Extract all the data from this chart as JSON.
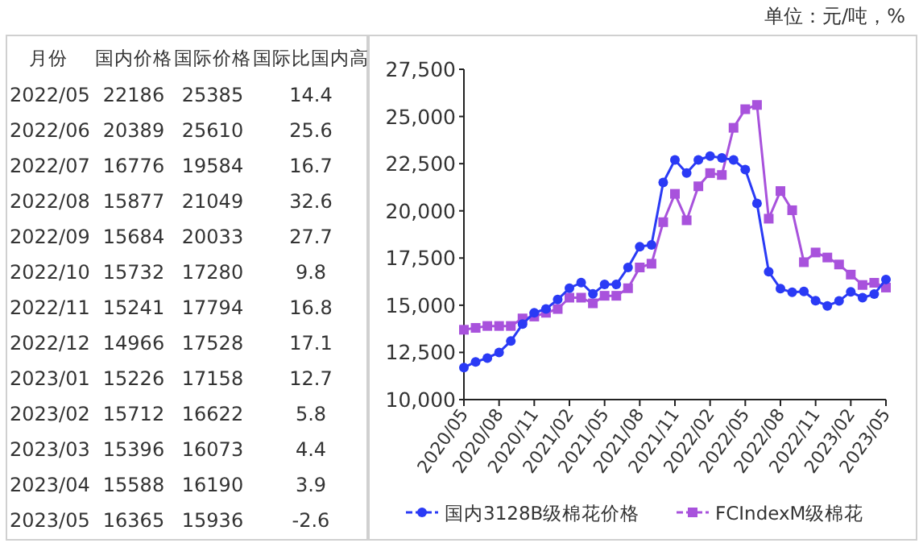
{
  "chart_data": [
    {
      "type": "other",
      "data_labels": true,
      "xlabel": "月份",
      "annotations": [
        "单位：元/吨，%"
      ],
      "categories": [
        "2022/05",
        "2022/06",
        "2022/07",
        "2022/08",
        "2022/09",
        "2022/10",
        "2022/11",
        "2022/12",
        "2023/01",
        "2023/02",
        "2023/03",
        "2023/04",
        "2023/05"
      ],
      "series": [
        {
          "name": "国内价格",
          "values": [
            22186,
            20389,
            16776,
            15877,
            15684,
            15732,
            15241,
            14966,
            15226,
            15712,
            15396,
            15588,
            16365
          ]
        },
        {
          "name": "国际价格",
          "values": [
            25385,
            25610,
            19584,
            21049,
            20033,
            17280,
            17794,
            17528,
            17158,
            16622,
            16073,
            16190,
            15936
          ]
        },
        {
          "name": "国际比国内高",
          "values": [
            14.4,
            25.6,
            16.7,
            32.6,
            27.7,
            9.8,
            16.8,
            17.1,
            12.7,
            5.8,
            4.4,
            3.9,
            -2.6
          ]
        }
      ]
    },
    {
      "type": "line",
      "legend": "bottom",
      "grid": false,
      "categories": [
        "2020/05",
        null,
        null,
        "2020/08",
        null,
        null,
        "2020/11",
        null,
        null,
        "2021/02",
        null,
        null,
        "2021/05",
        null,
        null,
        "2021/08",
        null,
        null,
        "2021/11",
        null,
        null,
        "2022/02",
        null,
        null,
        "2022/05",
        null,
        null,
        "2022/08",
        null,
        null,
        "2022/11",
        null,
        null,
        "2023/02",
        null,
        null,
        "2023/05"
      ],
      "ylim": [
        10000,
        27500
      ],
      "yticks": [
        {
          "value": 10000,
          "label": "10,000"
        },
        {
          "value": 12500,
          "label": "12,500"
        },
        {
          "value": 15000,
          "label": "15,000"
        },
        {
          "value": 17500,
          "label": "17,500"
        },
        {
          "value": 20000,
          "label": "20,000"
        },
        {
          "value": 22500,
          "label": "22,500"
        },
        {
          "value": 25000,
          "label": "25,000"
        },
        {
          "value": 27500,
          "label": "27,500"
        }
      ],
      "series": [
        {
          "name": "国内3128B级棉花价格",
          "color": "#2a3af5",
          "marker": "circle",
          "values": [
            11700,
            12000,
            12200,
            12500,
            13100,
            14000,
            14600,
            14800,
            15300,
            15900,
            16200,
            15600,
            16100,
            16100,
            17000,
            18100,
            18200,
            21500,
            22700,
            22000,
            22700,
            22900,
            22800,
            22700,
            22186,
            20389,
            16776,
            15877,
            15684,
            15732,
            15241,
            14966,
            15226,
            15712,
            15396,
            15588,
            16365
          ]
        },
        {
          "name": "FCIndexM级棉花",
          "color": "#a852dc",
          "marker": "square",
          "values": [
            13700,
            13800,
            13900,
            13900,
            13900,
            14300,
            14400,
            14600,
            14800,
            15400,
            15400,
            15100,
            15500,
            15500,
            15900,
            17000,
            17200,
            19400,
            20900,
            19500,
            21300,
            22000,
            21900,
            24400,
            25385,
            25610,
            19584,
            21049,
            20033,
            17280,
            17794,
            17528,
            17158,
            16622,
            16073,
            16190,
            15936
          ]
        }
      ]
    }
  ]
}
